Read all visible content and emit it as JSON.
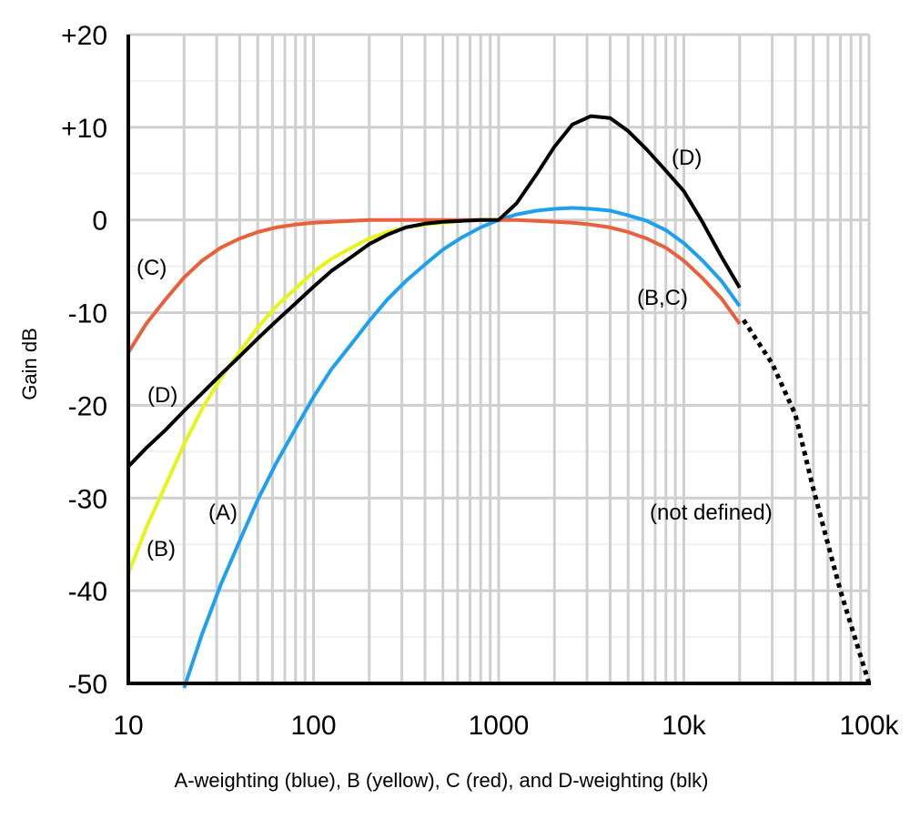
{
  "chart_data": {
    "type": "line",
    "title": "",
    "xlabel": "",
    "ylabel": "Gain dB",
    "caption": "A-weighting (blue), B (yellow), C (red), and D-weighting (blk)",
    "x_scale": "log",
    "xlim": [
      10,
      100000
    ],
    "ylim": [
      -50,
      20
    ],
    "grid": true,
    "x_ticks": [
      "10",
      "100",
      "1000",
      "10k",
      "100k"
    ],
    "x_tick_values": [
      10,
      100,
      1000,
      10000,
      100000
    ],
    "y_ticks": [
      "+20",
      "+10",
      "0",
      "-10",
      "-20",
      "-30",
      "-40",
      "-50"
    ],
    "y_tick_values": [
      20,
      10,
      0,
      -10,
      -20,
      -30,
      -40,
      -50
    ],
    "series": [
      {
        "key": "A",
        "color": "#1ea0f0",
        "dashed": false,
        "x": [
          20,
          25,
          31.5,
          40,
          50,
          63,
          80,
          100,
          125,
          160,
          200,
          250,
          315,
          400,
          500,
          630,
          800,
          1000,
          1250,
          1600,
          2000,
          2500,
          3150,
          4000,
          5000,
          6300,
          8000,
          10000,
          12500,
          16000,
          20000
        ],
        "y": [
          -50.5,
          -44.7,
          -39.4,
          -34.6,
          -30.2,
          -26.2,
          -22.5,
          -19.1,
          -16.1,
          -13.4,
          -10.9,
          -8.6,
          -6.6,
          -4.8,
          -3.2,
          -1.9,
          -0.8,
          0,
          0.6,
          1.0,
          1.2,
          1.3,
          1.2,
          1.0,
          0.5,
          -0.1,
          -1.1,
          -2.5,
          -4.3,
          -6.6,
          -9.3
        ]
      },
      {
        "key": "C",
        "color": "#e8603c",
        "dashed": false,
        "x": [
          10,
          12.5,
          16,
          20,
          25,
          31.5,
          40,
          50,
          63,
          80,
          100,
          125,
          160,
          200,
          500,
          1000,
          1250,
          1600,
          2000,
          2500,
          3150,
          4000,
          5000,
          6300,
          8000,
          10000,
          12500,
          16000,
          20000
        ],
        "y": [
          -14.3,
          -11.2,
          -8.5,
          -6.2,
          -4.4,
          -3.0,
          -2.0,
          -1.3,
          -0.8,
          -0.5,
          -0.3,
          -0.2,
          -0.1,
          0,
          0,
          0,
          0,
          -0.1,
          -0.2,
          -0.3,
          -0.5,
          -0.8,
          -1.3,
          -2.0,
          -3.0,
          -4.4,
          -6.2,
          -8.5,
          -11.2
        ]
      },
      {
        "key": "B",
        "color": "#e6f516",
        "dashed": false,
        "x": [
          10,
          12.5,
          16,
          20,
          25,
          31.5,
          40,
          50,
          63,
          80,
          100,
          125,
          160,
          200,
          250,
          315,
          400,
          500,
          630,
          800,
          1000
        ],
        "y": [
          -38.2,
          -33.2,
          -28.5,
          -24.2,
          -20.4,
          -17.1,
          -14.2,
          -11.6,
          -9.3,
          -7.4,
          -5.6,
          -4.2,
          -3.0,
          -2.0,
          -1.3,
          -0.8,
          -0.5,
          -0.3,
          -0.1,
          0,
          0
        ]
      },
      {
        "key": "D",
        "color": "#000000",
        "dashed": false,
        "x": [
          10,
          12.5,
          16,
          20,
          25,
          31.5,
          40,
          50,
          63,
          80,
          100,
          125,
          160,
          200,
          250,
          315,
          400,
          500,
          630,
          800,
          1000,
          1250,
          1600,
          2000,
          2500,
          3150,
          4000,
          5000,
          6300,
          8000,
          10000,
          12500,
          16000,
          20000
        ],
        "y": [
          -26.6,
          -24.6,
          -22.6,
          -20.6,
          -18.7,
          -16.7,
          -14.7,
          -12.8,
          -10.9,
          -9.0,
          -7.2,
          -5.5,
          -4.0,
          -2.6,
          -1.6,
          -0.8,
          -0.4,
          -0.2,
          -0.1,
          0,
          0,
          1.8,
          4.9,
          7.9,
          10.3,
          11.2,
          11.0,
          9.6,
          7.6,
          5.3,
          3.1,
          -0.1,
          -4.0,
          -7.3
        ]
      },
      {
        "key": "not-defined",
        "color": "#000000",
        "dashed": true,
        "x": [
          21000,
          30000,
          40000,
          50000,
          70000,
          100000
        ],
        "y": [
          -10.8,
          -15.5,
          -21,
          -29,
          -40,
          -50
        ]
      }
    ],
    "annotations": {
      "C_left": "(C)",
      "D_left": "(D)",
      "A": "(A)",
      "B": "(B)",
      "D_right": "(D)",
      "BC_right": "(B,C)",
      "not_defined": "(not defined)"
    }
  }
}
